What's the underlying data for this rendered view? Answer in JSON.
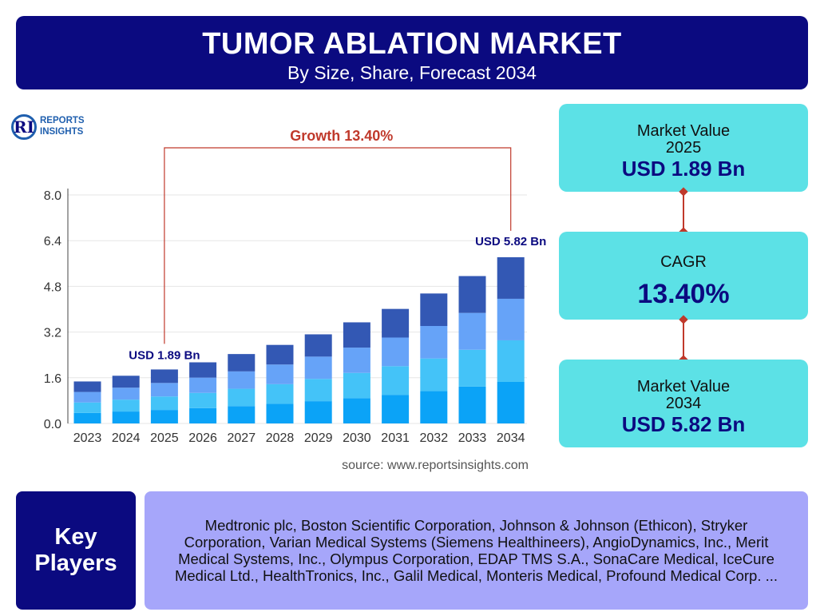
{
  "header": {
    "title": "TUMOR ABLATION MARKET",
    "subtitle": "By Size, Share, Forecast 2034"
  },
  "logo": {
    "letters": "RI",
    "line1": "REPORTS",
    "line2": "INSIGHTS"
  },
  "chart_data": {
    "type": "bar",
    "stacked": true,
    "categories": [
      "2023",
      "2024",
      "2025",
      "2026",
      "2027",
      "2028",
      "2029",
      "2030",
      "2031",
      "2032",
      "2033",
      "2034"
    ],
    "totals": [
      1.47,
      1.67,
      1.89,
      2.14,
      2.43,
      2.75,
      3.12,
      3.54,
      4.01,
      4.55,
      5.16,
      5.82
    ],
    "segment_shares": [
      0.25,
      0.25,
      0.25,
      0.25
    ],
    "segment_colors": [
      "#0ba3f7",
      "#44c3f8",
      "#66a3f8",
      "#3358b4"
    ],
    "ylim": [
      0,
      8.0
    ],
    "yticks": [
      "0.0",
      "1.6",
      "3.2",
      "4.8",
      "6.4",
      "8.0"
    ],
    "grid": true,
    "annotations": {
      "start_label": "USD 1.89 Bn",
      "end_label": "USD 5.82 Bn",
      "growth_label": "Growth 13.40%"
    },
    "source": "source: www.reportsinsights.com"
  },
  "cards": {
    "value_2025": {
      "label1": "Market Value",
      "label2": "2025",
      "value": "USD 1.89 Bn"
    },
    "cagr": {
      "label": "CAGR",
      "value": "13.40%"
    },
    "value_2034": {
      "label1": "Market Value",
      "label2": "2034",
      "value": "USD 5.82 Bn"
    }
  },
  "key_players": {
    "label_line1": "Key",
    "label_line2": "Players",
    "text": "Medtronic plc, Boston Scientific Corporation, Johnson & Johnson (Ethicon), Stryker Corporation, Varian Medical Systems (Siemens Healthineers), AngioDynamics, Inc., Merit Medical Systems, Inc., Olympus Corporation, EDAP TMS S.A., SonaCare Medical, IceCure Medical Ltd., HealthTronics, Inc., Galil Medical, Monteris Medical, Profound Medical Corp. ..."
  },
  "colors": {
    "navy": "#0b0a80",
    "cyan": "#5ce1e6",
    "lavender": "#a6a6fa",
    "growth": "#c0392b"
  }
}
